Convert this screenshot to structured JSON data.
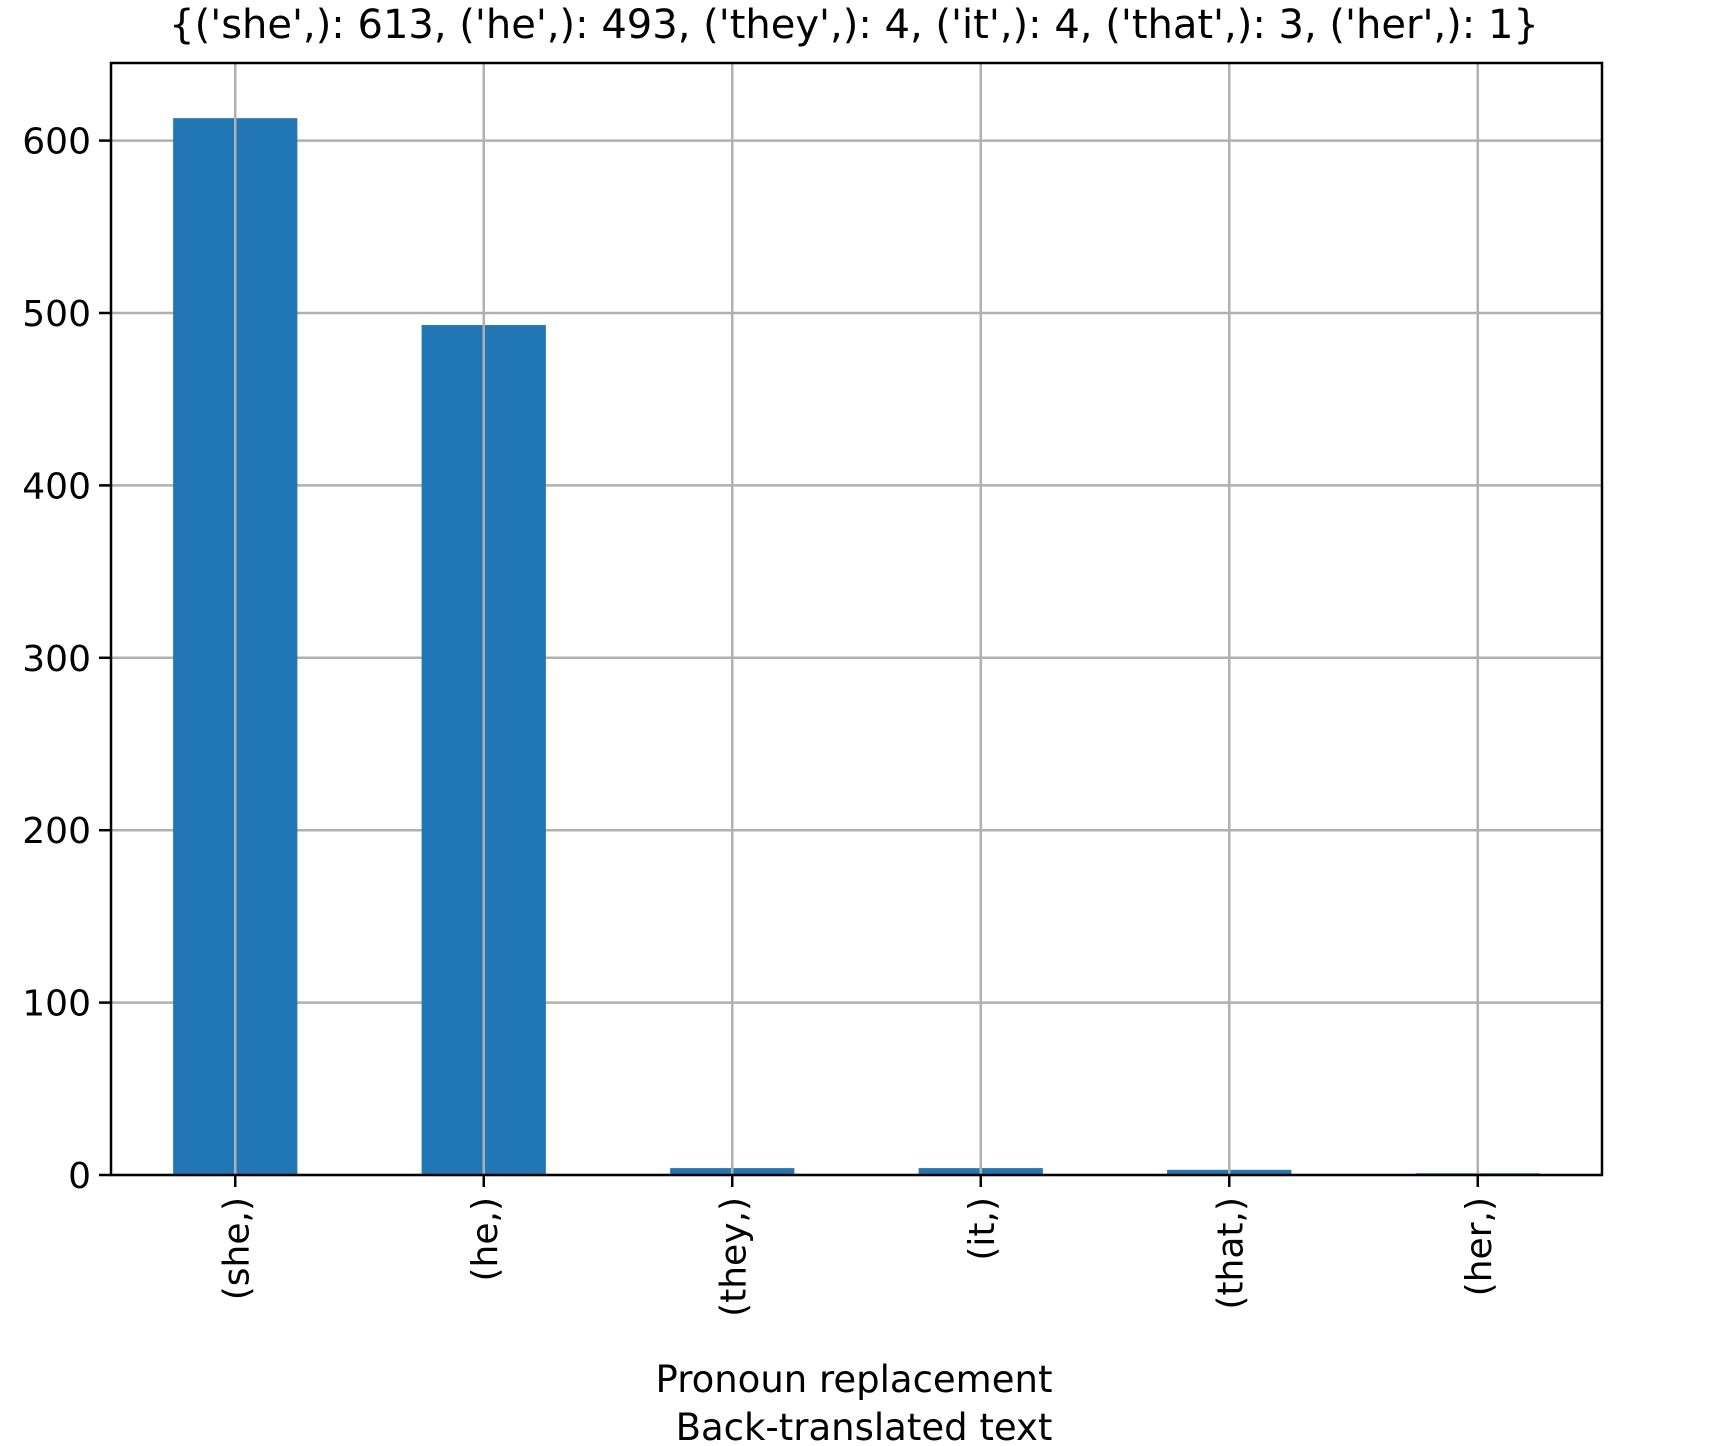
{
  "chart_data": {
    "type": "bar",
    "title": "{('she',): 613, ('he',): 493, ('they',): 4, ('it',): 4, ('that',): 3, ('her',): 1}",
    "xlabel_lines": [
      "Pronoun replacement",
      "Back-translated text"
    ],
    "ylabel": "",
    "categories": [
      "(she,)",
      "(he,)",
      "(they,)",
      "(it,)",
      "(that,)",
      "(her,)"
    ],
    "values": [
      613,
      493,
      4,
      4,
      3,
      1
    ],
    "ylim": [
      0,
      645
    ],
    "yticks": [
      0,
      100,
      200,
      300,
      400,
      500,
      600
    ],
    "ytick_labels": [
      "0",
      "100",
      "200",
      "300",
      "400",
      "500",
      "600"
    ],
    "grid": true,
    "legend": "none",
    "colors": {
      "bar": "#2077b4",
      "grid": "#b0b0b0",
      "frame": "#000000"
    }
  }
}
